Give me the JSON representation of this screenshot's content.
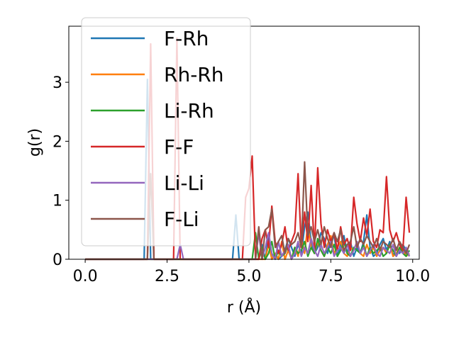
{
  "chart_data": {
    "type": "line",
    "title": "",
    "xlabel": "r (Å)",
    "ylabel": "g(r)",
    "xlim": [
      -0.5,
      10.2
    ],
    "ylim": [
      0,
      3.95
    ],
    "xticks": [
      "0.0",
      "2.5",
      "5.0",
      "7.5",
      "10.0"
    ],
    "xtick_values": [
      0,
      2.5,
      5,
      7.5,
      10
    ],
    "yticks": [
      "0",
      "1",
      "2",
      "3"
    ],
    "ytick_values": [
      0,
      1,
      2,
      3
    ],
    "grid": false,
    "legend_position": "top-left",
    "x": [
      0.0,
      0.1,
      0.2,
      0.3,
      0.4,
      0.5,
      0.6,
      0.7,
      0.8,
      0.9,
      1.0,
      1.1,
      1.2,
      1.3,
      1.4,
      1.5,
      1.6,
      1.7,
      1.8,
      1.9,
      2.0,
      2.1,
      2.2,
      2.3,
      2.4,
      2.5,
      2.6,
      2.7,
      2.8,
      2.9,
      3.0,
      3.1,
      3.2,
      3.3,
      3.4,
      3.5,
      3.6,
      3.7,
      3.8,
      3.9,
      4.0,
      4.1,
      4.2,
      4.3,
      4.4,
      4.5,
      4.6,
      4.7,
      4.8,
      4.9,
      5.0,
      5.1,
      5.2,
      5.3,
      5.4,
      5.5,
      5.6,
      5.7,
      5.8,
      5.9,
      6.0,
      6.1,
      6.2,
      6.3,
      6.4,
      6.5,
      6.6,
      6.7,
      6.8,
      6.9,
      7.0,
      7.1,
      7.2,
      7.3,
      7.4,
      7.5,
      7.6,
      7.7,
      7.8,
      7.9,
      8.0,
      8.1,
      8.2,
      8.3,
      8.4,
      8.5,
      8.6,
      8.7,
      8.8,
      8.9,
      9.0,
      9.1,
      9.2,
      9.3,
      9.4,
      9.5,
      9.6,
      9.7,
      9.8,
      9.9
    ],
    "series": [
      {
        "name": "F-Rh",
        "color": "#1f77b4",
        "values": [
          0,
          0,
          0,
          0,
          0,
          0,
          0,
          0,
          0,
          0,
          0,
          0,
          0,
          0,
          0,
          0,
          0,
          0,
          0,
          3.05,
          0,
          0,
          0,
          0,
          0,
          0,
          0,
          0,
          0,
          0,
          0,
          0,
          0,
          0,
          0,
          0,
          0,
          0,
          0,
          0,
          0,
          0,
          0,
          0,
          0,
          0,
          0.75,
          0,
          0,
          0,
          0,
          0,
          0,
          0,
          0.25,
          0,
          0.4,
          0,
          0.1,
          0,
          0.05,
          0.15,
          0.35,
          0.2,
          0.05,
          0.25,
          0.1,
          0.55,
          0.8,
          0.3,
          0.1,
          0.2,
          0.45,
          0.35,
          0.1,
          0.3,
          0.4,
          0.05,
          0.25,
          0.4,
          0.1,
          0.3,
          0.05,
          0.2,
          0.1,
          0.3,
          0.75,
          0.2,
          0.05,
          0.1,
          0.25,
          0.35,
          0.15,
          0.3,
          0.05,
          0.2,
          0.1,
          0.25,
          0.15,
          0.05
        ]
      },
      {
        "name": "Rh-Rh",
        "color": "#ff7f0e",
        "values": [
          0,
          0,
          0,
          0,
          0,
          0,
          0,
          0,
          0,
          0,
          0,
          0,
          0,
          0,
          0,
          0,
          0,
          0,
          0,
          0,
          0,
          0,
          0,
          0,
          0,
          0,
          0,
          0,
          0,
          0,
          0,
          0,
          0,
          0,
          0,
          0,
          0,
          0,
          0,
          0,
          0,
          0,
          0,
          0,
          0,
          0,
          0,
          0,
          0,
          0,
          0,
          0,
          0,
          0,
          0,
          0,
          0.25,
          0,
          0.1,
          0,
          0.3,
          0,
          0.15,
          0,
          0.2,
          0.05,
          0.35,
          0.1,
          0.6,
          0.2,
          0.1,
          0.3,
          0.15,
          0.05,
          0.25,
          0.4,
          0.1,
          0.2,
          0.3,
          0.1,
          0.05,
          0.2,
          0.15,
          0.3,
          0.1,
          0.05,
          0.25,
          0.1,
          0.2,
          0.05,
          0.15,
          0.2,
          0.1,
          0.25,
          0.05,
          0.1,
          0.2,
          0.15,
          0.05,
          0.1
        ]
      },
      {
        "name": "Li-Rh",
        "color": "#2ca02c",
        "values": [
          0,
          0,
          0,
          0,
          0,
          0,
          0,
          0,
          0,
          0,
          0,
          0,
          0,
          0,
          0,
          0,
          0,
          0,
          0,
          0,
          0,
          0,
          0,
          0,
          0,
          0,
          0,
          0,
          0,
          0,
          0,
          0,
          0,
          0,
          0,
          0,
          0,
          0,
          0,
          0,
          0,
          0,
          0,
          0,
          0,
          0,
          0,
          0,
          0,
          0,
          0,
          0,
          0.45,
          0,
          0.2,
          0,
          0.1,
          0.3,
          0,
          0.15,
          0.05,
          0.1,
          0.25,
          0,
          0.2,
          0.1,
          0.15,
          0.3,
          0.05,
          0.2,
          0.1,
          0.35,
          0.15,
          0.05,
          0.2,
          0.1,
          0.25,
          0.05,
          0.15,
          0.3,
          0.1,
          0.05,
          0.2,
          0.15,
          0.1,
          0.25,
          0.05,
          0.2,
          0.1,
          0.15,
          0.2,
          0.05,
          0.1,
          0.25,
          0.15,
          0.05,
          0.2,
          0.1,
          0.05,
          0.15
        ]
      },
      {
        "name": "F-F",
        "color": "#d62728",
        "values": [
          0,
          0,
          0,
          0,
          0,
          0,
          0,
          0,
          0,
          0,
          0,
          0,
          0,
          0,
          0,
          0,
          0,
          0,
          0,
          0,
          3.65,
          0,
          0,
          0,
          0,
          0,
          0,
          0,
          3.75,
          0,
          0,
          0,
          0,
          0,
          0,
          0,
          0,
          0,
          0,
          0,
          0,
          0,
          0,
          0,
          0,
          0,
          0,
          0,
          0,
          1.05,
          1.2,
          1.75,
          0,
          0,
          0.35,
          0.5,
          0.2,
          0.9,
          0.3,
          0.1,
          0.25,
          0.55,
          0.15,
          0.3,
          0.45,
          1.45,
          0.2,
          0.8,
          0.3,
          1.25,
          0.15,
          1.55,
          0.6,
          0.2,
          0.5,
          0.3,
          0.45,
          0.15,
          0.55,
          0.25,
          0.35,
          0.15,
          1.05,
          0.6,
          0.3,
          0.7,
          0.4,
          0.85,
          0.3,
          0.2,
          0.5,
          0.45,
          1.4,
          0.5,
          0.3,
          0.45,
          0.25,
          0.15,
          1.05,
          0.45
        ]
      },
      {
        "name": "Li-Li",
        "color": "#9467bd",
        "values": [
          0,
          0,
          0,
          0,
          0,
          0,
          0,
          0,
          0,
          0,
          0,
          0,
          0,
          0,
          0,
          0,
          0,
          0,
          0,
          0,
          0,
          0,
          0,
          0,
          0,
          0,
          0,
          0,
          0,
          0.25,
          0,
          0,
          0,
          0,
          0,
          0,
          0,
          0,
          0,
          0,
          0,
          0,
          0,
          0,
          0,
          0,
          0,
          0,
          0,
          0,
          0,
          0,
          0,
          0.45,
          0,
          0.2,
          0.45,
          0.1,
          0,
          0.3,
          0.05,
          0.15,
          0.25,
          0,
          0.1,
          0.3,
          0.05,
          0.2,
          0.1,
          0.35,
          0.15,
          0.05,
          0.25,
          0.1,
          0.2,
          0.3,
          0.05,
          0.15,
          0.2,
          0.1,
          0.25,
          0.05,
          0.15,
          0.3,
          0.1,
          0.2,
          0.05,
          0.15,
          0.25,
          0.1,
          0.05,
          0.2,
          0.15,
          0.1,
          0.25,
          0.05,
          0.15,
          0.1,
          0.2,
          0.05
        ]
      },
      {
        "name": "F-Li",
        "color": "#8c564b",
        "values": [
          0,
          0,
          0,
          0,
          0,
          0,
          0,
          0,
          0,
          0,
          0,
          0,
          0,
          0,
          0,
          0,
          0,
          0,
          0,
          0,
          1.45,
          0,
          0,
          0,
          0,
          0,
          0,
          0,
          0,
          0,
          0,
          0,
          0,
          0,
          0,
          0,
          0,
          0,
          0,
          0,
          0,
          0,
          0,
          0,
          0,
          0,
          0,
          0,
          0,
          0,
          0,
          0,
          0,
          0.55,
          0,
          0.5,
          0.55,
          0.85,
          0.2,
          0.3,
          0.4,
          0.1,
          0.35,
          0.25,
          0.3,
          0.45,
          0.2,
          1.65,
          0.4,
          0.55,
          0.3,
          0.5,
          0.25,
          0.55,
          0.35,
          0.2,
          0.45,
          0.3,
          0.5,
          0.15,
          0.25,
          0.3,
          0.55,
          0.2,
          0.35,
          0.25,
          0.4,
          0.3,
          0.2,
          0.35,
          0.15,
          0.3,
          0.25,
          0.2,
          0.35,
          0.15,
          0.3,
          0.2,
          0.1,
          0.25
        ]
      }
    ]
  }
}
